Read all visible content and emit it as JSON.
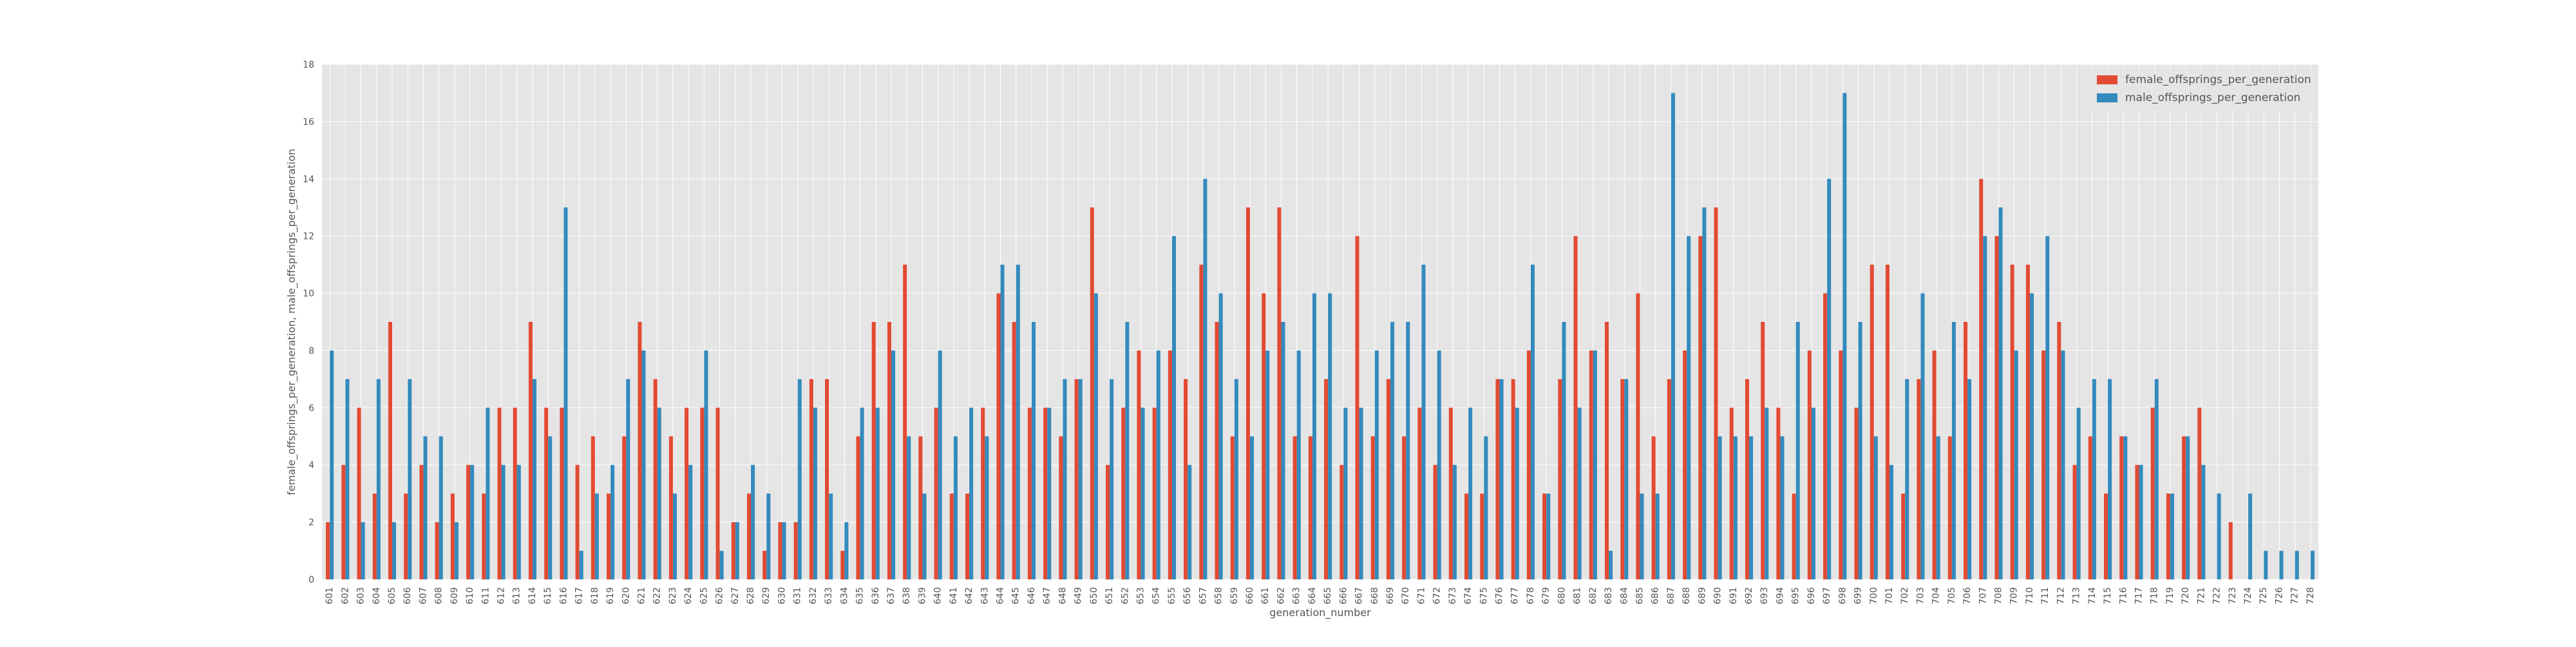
{
  "chart_data": {
    "type": "bar",
    "title": "",
    "xlabel": "generation_number",
    "ylabel": "female_offsprings_per_generation, male_offsprings_per_generation",
    "ylim": [
      0,
      18
    ],
    "yticks": [
      0,
      2,
      4,
      6,
      8,
      10,
      12,
      14,
      16,
      18
    ],
    "grid": true,
    "legend_position": "top-right",
    "categories": [
      "601",
      "602",
      "603",
      "604",
      "605",
      "606",
      "607",
      "608",
      "609",
      "610",
      "611",
      "612",
      "613",
      "614",
      "615",
      "616",
      "617",
      "618",
      "619",
      "620",
      "621",
      "622",
      "623",
      "624",
      "625",
      "626",
      "627",
      "628",
      "629",
      "630",
      "631",
      "632",
      "633",
      "634",
      "635",
      "636",
      "637",
      "638",
      "639",
      "640",
      "641",
      "642",
      "643",
      "644",
      "645",
      "646",
      "647",
      "648",
      "649",
      "650",
      "651",
      "652",
      "653",
      "654",
      "655",
      "656",
      "657",
      "658",
      "659",
      "660",
      "661",
      "662",
      "663",
      "664",
      "665",
      "666",
      "667",
      "668",
      "669",
      "670",
      "671",
      "672",
      "673",
      "674",
      "675",
      "676",
      "677",
      "678",
      "679",
      "680",
      "681",
      "682",
      "683",
      "684",
      "685",
      "686",
      "687",
      "688",
      "689",
      "690",
      "691",
      "692",
      "693",
      "694",
      "695",
      "696",
      "697",
      "698",
      "699",
      "700",
      "701",
      "702",
      "703",
      "704",
      "705",
      "706",
      "707",
      "708",
      "709",
      "710",
      "711",
      "712",
      "713",
      "714",
      "715",
      "716",
      "717",
      "718",
      "719",
      "720",
      "721",
      "722",
      "723",
      "724",
      "725",
      "726",
      "727",
      "728"
    ],
    "series": [
      {
        "name": "female_offsprings_per_generation",
        "color": "#E24A33",
        "values": [
          2,
          4,
          6,
          3,
          9,
          3,
          4,
          2,
          3,
          4,
          3,
          6,
          6,
          9,
          6,
          6,
          4,
          5,
          3,
          5,
          9,
          7,
          5,
          6,
          6,
          6,
          2,
          3,
          1,
          2,
          2,
          7,
          7,
          1,
          5,
          9,
          9,
          11,
          5,
          6,
          3,
          3,
          6,
          10,
          9,
          6,
          6,
          5,
          7,
          13,
          4,
          6,
          8,
          6,
          8,
          7,
          11,
          9,
          5,
          13,
          10,
          13,
          5,
          5,
          7,
          4,
          12,
          5,
          7,
          5,
          6,
          4,
          6,
          3,
          3,
          7,
          7,
          8,
          3,
          7,
          12,
          8,
          9,
          7,
          10,
          5,
          7,
          8,
          12,
          13,
          6,
          7,
          9,
          6,
          3,
          8,
          10,
          8,
          6,
          11,
          11,
          3,
          7,
          8,
          5,
          9,
          14,
          12,
          11,
          11,
          8,
          9,
          4,
          5,
          3,
          5,
          4,
          6,
          3,
          5,
          6,
          0,
          2,
          0,
          0,
          0,
          0,
          0
        ]
      },
      {
        "name": "male_offsprings_per_generation",
        "color": "#348ABD",
        "values": [
          8,
          7,
          2,
          7,
          2,
          7,
          5,
          5,
          2,
          4,
          6,
          4,
          4,
          7,
          5,
          13,
          1,
          3,
          4,
          7,
          8,
          6,
          3,
          4,
          8,
          1,
          2,
          4,
          3,
          2,
          7,
          6,
          3,
          2,
          6,
          6,
          8,
          5,
          3,
          8,
          5,
          6,
          5,
          11,
          11,
          9,
          6,
          7,
          7,
          10,
          7,
          9,
          6,
          8,
          12,
          4,
          14,
          10,
          7,
          5,
          8,
          9,
          8,
          10,
          10,
          6,
          6,
          8,
          9,
          9,
          11,
          8,
          4,
          6,
          5,
          7,
          6,
          11,
          3,
          9,
          6,
          8,
          1,
          7,
          3,
          3,
          17,
          12,
          13,
          5,
          5,
          5,
          6,
          5,
          9,
          6,
          14,
          17,
          9,
          5,
          4,
          7,
          10,
          5,
          9,
          7,
          12,
          13,
          8,
          10,
          12,
          8,
          6,
          7,
          7,
          5,
          4,
          7,
          3,
          5,
          4,
          3,
          0,
          3,
          1,
          1,
          1,
          1
        ]
      }
    ]
  }
}
